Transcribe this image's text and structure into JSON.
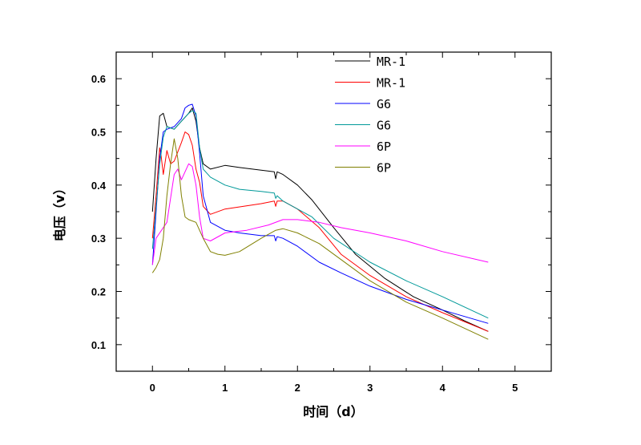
{
  "chart_data": {
    "type": "line",
    "title": "",
    "xlabel": "时间（d）",
    "ylabel": "电压（v）",
    "xlim": [
      -0.5,
      5.5
    ],
    "ylim": [
      0.05,
      0.65
    ],
    "xticks": [
      "0",
      "1",
      "2",
      "3",
      "4",
      "5"
    ],
    "yticks": [
      "0.1",
      "0.2",
      "0.3",
      "0.4",
      "0.5",
      "0.6"
    ],
    "legend_position": "top-right",
    "grid": false,
    "series": [
      {
        "name": "MR-1",
        "color": "#000000",
        "x": [
          0,
          0.05,
          0.1,
          0.15,
          0.2,
          0.3,
          0.4,
          0.5,
          0.55,
          0.6,
          0.65,
          0.7,
          0.8,
          1.0,
          1.2,
          1.5,
          1.68,
          1.7,
          1.72,
          1.8,
          2.0,
          2.2,
          2.5,
          2.8,
          3.2,
          3.6,
          4.0,
          4.3,
          4.63
        ],
        "y": [
          0.35,
          0.45,
          0.53,
          0.535,
          0.51,
          0.505,
          0.52,
          0.535,
          0.545,
          0.52,
          0.47,
          0.44,
          0.43,
          0.437,
          0.433,
          0.428,
          0.425,
          0.412,
          0.425,
          0.42,
          0.4,
          0.372,
          0.32,
          0.27,
          0.225,
          0.19,
          0.165,
          0.145,
          0.125
        ]
      },
      {
        "name": "MR-1",
        "color": "#ff0000",
        "x": [
          0,
          0.05,
          0.1,
          0.12,
          0.15,
          0.2,
          0.25,
          0.3,
          0.4,
          0.45,
          0.5,
          0.55,
          0.6,
          0.65,
          0.7,
          0.8,
          1.0,
          1.5,
          1.68,
          1.7,
          1.72,
          1.8,
          2.0,
          2.3,
          2.6,
          3.0,
          3.5,
          4.0,
          4.63
        ],
        "y": [
          0.3,
          0.38,
          0.47,
          0.455,
          0.42,
          0.465,
          0.44,
          0.445,
          0.48,
          0.5,
          0.495,
          0.475,
          0.43,
          0.405,
          0.36,
          0.345,
          0.355,
          0.365,
          0.37,
          0.36,
          0.37,
          0.37,
          0.355,
          0.32,
          0.27,
          0.23,
          0.19,
          0.16,
          0.125
        ]
      },
      {
        "name": "G6",
        "color": "#0000ff",
        "x": [
          0,
          0.05,
          0.1,
          0.15,
          0.2,
          0.3,
          0.4,
          0.45,
          0.5,
          0.55,
          0.6,
          0.65,
          0.7,
          0.8,
          1.0,
          1.2,
          1.5,
          1.68,
          1.7,
          1.72,
          1.8,
          2.0,
          2.3,
          2.6,
          3.0,
          3.5,
          4.0,
          4.63
        ],
        "y": [
          0.25,
          0.35,
          0.45,
          0.5,
          0.505,
          0.51,
          0.525,
          0.545,
          0.55,
          0.552,
          0.53,
          0.46,
          0.38,
          0.33,
          0.315,
          0.31,
          0.305,
          0.305,
          0.295,
          0.303,
          0.3,
          0.285,
          0.255,
          0.235,
          0.21,
          0.185,
          0.165,
          0.14
        ]
      },
      {
        "name": "G6",
        "color": "#009999",
        "x": [
          0,
          0.05,
          0.1,
          0.15,
          0.2,
          0.3,
          0.4,
          0.5,
          0.55,
          0.6,
          0.65,
          0.7,
          0.8,
          1.0,
          1.2,
          1.5,
          1.68,
          1.7,
          1.72,
          1.8,
          2.0,
          2.2,
          2.5,
          3.0,
          3.5,
          4.0,
          4.63
        ],
        "y": [
          0.28,
          0.36,
          0.44,
          0.49,
          0.51,
          0.505,
          0.52,
          0.535,
          0.54,
          0.535,
          0.47,
          0.43,
          0.415,
          0.4,
          0.392,
          0.388,
          0.385,
          0.375,
          0.38,
          0.37,
          0.355,
          0.34,
          0.3,
          0.255,
          0.22,
          0.19,
          0.15
        ]
      },
      {
        "name": "6P",
        "color": "#ff00ff",
        "x": [
          0,
          0.05,
          0.1,
          0.2,
          0.3,
          0.35,
          0.4,
          0.5,
          0.55,
          0.6,
          0.65,
          0.7,
          0.8,
          1.0,
          1.3,
          1.6,
          1.8,
          2.0,
          2.3,
          2.6,
          3.0,
          3.5,
          4.0,
          4.63
        ],
        "y": [
          0.25,
          0.3,
          0.31,
          0.33,
          0.42,
          0.43,
          0.41,
          0.44,
          0.435,
          0.4,
          0.34,
          0.3,
          0.295,
          0.31,
          0.315,
          0.325,
          0.335,
          0.335,
          0.33,
          0.32,
          0.31,
          0.295,
          0.275,
          0.255
        ]
      },
      {
        "name": "6P",
        "color": "#808000",
        "x": [
          0,
          0.05,
          0.1,
          0.15,
          0.2,
          0.25,
          0.3,
          0.35,
          0.4,
          0.45,
          0.5,
          0.6,
          0.7,
          0.8,
          0.9,
          1.0,
          1.2,
          1.5,
          1.7,
          1.8,
          2.0,
          2.3,
          2.6,
          3.0,
          3.5,
          4.0,
          4.63
        ],
        "y": [
          0.235,
          0.245,
          0.26,
          0.3,
          0.38,
          0.44,
          0.487,
          0.45,
          0.38,
          0.34,
          0.335,
          0.33,
          0.3,
          0.275,
          0.27,
          0.268,
          0.275,
          0.3,
          0.315,
          0.318,
          0.31,
          0.29,
          0.26,
          0.22,
          0.18,
          0.15,
          0.11
        ]
      }
    ]
  }
}
